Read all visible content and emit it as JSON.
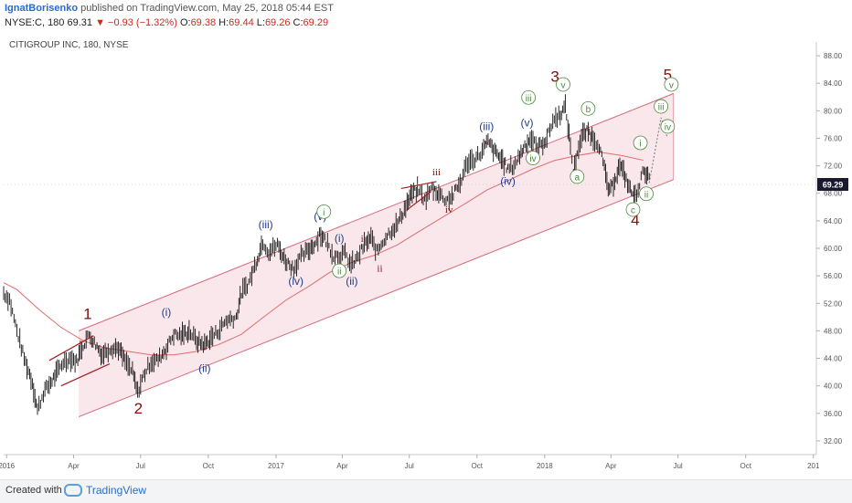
{
  "header": {
    "author": "IgnatBorisenko",
    "published_text": "published on TradingView.com, May 25, 2018 05:44 EST",
    "symbol_interval": "NYSE:C, 180",
    "last": "69.31",
    "change_arrow": "▼",
    "change": "−0.93 (−1.32%)",
    "o_label": "O:",
    "o_value": "69.38",
    "h_label": "H:",
    "h_value": "69.44",
    "l_label": "L:",
    "l_value": "69.26",
    "c_label": "C:",
    "c_value": "69.29"
  },
  "footer": {
    "created_with": "Created with",
    "brand": "TradingView",
    "logo_icon": "tradingview-logo-icon"
  },
  "colors": {
    "price": "#111111",
    "ma": "#e06c6c",
    "channel_fill": "#f7dfe4",
    "channel_line": "#d46a79",
    "red_label": "#7a1010",
    "blue_label": "#1f3c8c",
    "green_label": "#4a8a3a",
    "price_tag_bg": "#1a1a2e"
  },
  "chart_data": {
    "type": "line",
    "title": "CITIGROUP INC, 180, NYSE",
    "ylim": [
      30,
      90
    ],
    "yticks": [
      "88.00",
      "84.00",
      "80.00",
      "76.00",
      "72.00",
      "68.00",
      "64.00",
      "60.00",
      "56.00",
      "52.00",
      "48.00",
      "44.00",
      "40.00",
      "36.00",
      "32.00"
    ],
    "ytick_values": [
      88,
      84,
      80,
      76,
      72,
      68,
      64,
      60,
      56,
      52,
      48,
      44,
      40,
      36,
      32
    ],
    "xlim": [
      "2015-12-28",
      "2019-01-05"
    ],
    "xticks": [
      {
        "label": "2016",
        "date": "2016-01-01"
      },
      {
        "label": "Apr",
        "date": "2016-04-01"
      },
      {
        "label": "Jul",
        "date": "2016-07-01"
      },
      {
        "label": "Oct",
        "date": "2016-10-01"
      },
      {
        "label": "2017",
        "date": "2017-01-01"
      },
      {
        "label": "Apr",
        "date": "2017-04-01"
      },
      {
        "label": "Jul",
        "date": "2017-07-01"
      },
      {
        "label": "Oct",
        "date": "2017-10-01"
      },
      {
        "label": "2018",
        "date": "2018-01-01"
      },
      {
        "label": "Apr",
        "date": "2018-04-01"
      },
      {
        "label": "Jul",
        "date": "2018-07-01"
      },
      {
        "label": "Oct",
        "date": "2018-10-01"
      },
      {
        "label": "201",
        "date": "2019-01-01"
      }
    ],
    "current_price_label": "69.29",
    "current_price": 69.29,
    "series": [
      {
        "points": [
          [
            "2015-12-28",
            53.5
          ],
          [
            "2016-01-05",
            52.5
          ],
          [
            "2016-01-15",
            48
          ],
          [
            "2016-01-25",
            44
          ],
          [
            "2016-02-05",
            40.5
          ],
          [
            "2016-02-12",
            36.5
          ],
          [
            "2016-02-20",
            39
          ],
          [
            "2016-03-01",
            40.5
          ],
          [
            "2016-03-10",
            42
          ],
          [
            "2016-03-18",
            43.5
          ],
          [
            "2016-03-28",
            44
          ],
          [
            "2016-04-05",
            43.5
          ],
          [
            "2016-04-12",
            45.5
          ],
          [
            "2016-04-22",
            47.5
          ],
          [
            "2016-05-01",
            46
          ],
          [
            "2016-05-10",
            44.5
          ],
          [
            "2016-05-20",
            45.5
          ],
          [
            "2016-06-01",
            45.5
          ],
          [
            "2016-06-10",
            43.5
          ],
          [
            "2016-06-20",
            42
          ],
          [
            "2016-06-27",
            39
          ],
          [
            "2016-07-05",
            41.5
          ],
          [
            "2016-07-15",
            43.5
          ],
          [
            "2016-07-25",
            43.8
          ],
          [
            "2016-08-05",
            45.5
          ],
          [
            "2016-08-15",
            47.5
          ],
          [
            "2016-08-25",
            47.3
          ],
          [
            "2016-09-05",
            48
          ],
          [
            "2016-09-15",
            46.5
          ],
          [
            "2016-09-26",
            46
          ],
          [
            "2016-10-05",
            47
          ],
          [
            "2016-10-15",
            48
          ],
          [
            "2016-10-25",
            49.5
          ],
          [
            "2016-11-08",
            50
          ],
          [
            "2016-11-15",
            53.5
          ],
          [
            "2016-11-25",
            55
          ],
          [
            "2016-12-05",
            58
          ],
          [
            "2016-12-14",
            61
          ],
          [
            "2016-12-22",
            59.5
          ],
          [
            "2017-01-03",
            60.5
          ],
          [
            "2017-01-12",
            58.5
          ],
          [
            "2017-01-25",
            57
          ],
          [
            "2017-02-02",
            58.5
          ],
          [
            "2017-02-12",
            59.5
          ],
          [
            "2017-02-25",
            61
          ],
          [
            "2017-03-01",
            62.2
          ],
          [
            "2017-03-10",
            61
          ],
          [
            "2017-03-20",
            59
          ],
          [
            "2017-03-28",
            59
          ],
          [
            "2017-04-05",
            59.2
          ],
          [
            "2017-04-13",
            57.5
          ],
          [
            "2017-04-21",
            58.5
          ],
          [
            "2017-05-01",
            60.5
          ],
          [
            "2017-05-10",
            61.5
          ],
          [
            "2017-05-18",
            59.5
          ],
          [
            "2017-05-26",
            61
          ],
          [
            "2017-06-05",
            62.5
          ],
          [
            "2017-06-15",
            63.5
          ],
          [
            "2017-06-28",
            66.5
          ],
          [
            "2017-07-05",
            68
          ],
          [
            "2017-07-14",
            68.5
          ],
          [
            "2017-07-22",
            67
          ],
          [
            "2017-08-01",
            68.8
          ],
          [
            "2017-08-10",
            68
          ],
          [
            "2017-08-20",
            67
          ],
          [
            "2017-08-28",
            67.5
          ],
          [
            "2017-09-08",
            69.5
          ],
          [
            "2017-09-18",
            72.5
          ],
          [
            "2017-09-28",
            73
          ],
          [
            "2017-10-08",
            74
          ],
          [
            "2017-10-16",
            75.5
          ],
          [
            "2017-10-25",
            74
          ],
          [
            "2017-11-03",
            73
          ],
          [
            "2017-11-12",
            71.5
          ],
          [
            "2017-11-20",
            72
          ],
          [
            "2017-11-28",
            73.5
          ],
          [
            "2017-12-05",
            75
          ],
          [
            "2017-12-14",
            76
          ],
          [
            "2017-12-22",
            74.5
          ],
          [
            "2018-01-04",
            76
          ],
          [
            "2018-01-12",
            78.5
          ],
          [
            "2018-01-22",
            79.5
          ],
          [
            "2018-01-29",
            80.5
          ],
          [
            "2018-02-05",
            75
          ],
          [
            "2018-02-09",
            71
          ],
          [
            "2018-02-14",
            74
          ],
          [
            "2018-02-22",
            76.5
          ],
          [
            "2018-03-01",
            77
          ],
          [
            "2018-03-08",
            76
          ],
          [
            "2018-03-16",
            75
          ],
          [
            "2018-03-23",
            71.5
          ],
          [
            "2018-03-30",
            68
          ],
          [
            "2018-04-06",
            70
          ],
          [
            "2018-04-13",
            72
          ],
          [
            "2018-04-20",
            70.5
          ],
          [
            "2018-04-27",
            68.5
          ],
          [
            "2018-05-04",
            67.5
          ],
          [
            "2018-05-10",
            69.5
          ],
          [
            "2018-05-16",
            71.5
          ],
          [
            "2018-05-21",
            70.5
          ],
          [
            "2018-05-25",
            69.3
          ]
        ]
      },
      {
        "points": [
          [
            "2015-12-28",
            55
          ],
          [
            "2016-01-15",
            54
          ],
          [
            "2016-02-15",
            51
          ],
          [
            "2016-03-15",
            48.5
          ],
          [
            "2016-04-15",
            46.5
          ],
          [
            "2016-05-15",
            45.5
          ],
          [
            "2016-06-15",
            45
          ],
          [
            "2016-07-15",
            44.5
          ],
          [
            "2016-08-15",
            44.5
          ],
          [
            "2016-09-15",
            45
          ],
          [
            "2016-10-15",
            46
          ],
          [
            "2016-11-15",
            47.5
          ],
          [
            "2016-12-15",
            50
          ],
          [
            "2017-01-15",
            52.5
          ],
          [
            "2017-02-15",
            54.5
          ],
          [
            "2017-03-15",
            56.5
          ],
          [
            "2017-04-15",
            58
          ],
          [
            "2017-05-15",
            59
          ],
          [
            "2017-06-15",
            60.5
          ],
          [
            "2017-07-15",
            62.5
          ],
          [
            "2017-08-15",
            64.5
          ],
          [
            "2017-09-15",
            66.5
          ],
          [
            "2017-10-15",
            68.5
          ],
          [
            "2017-11-15",
            70
          ],
          [
            "2017-12-15",
            71.5
          ],
          [
            "2018-01-15",
            72.8
          ],
          [
            "2018-02-15",
            73.5
          ],
          [
            "2018-03-15",
            74
          ],
          [
            "2018-04-15",
            73.5
          ],
          [
            "2018-05-15",
            72.8
          ]
        ]
      }
    ],
    "channel": {
      "upper": [
        [
          "2016-04-08",
          48
        ],
        [
          "2018-06-25",
          82.5
        ]
      ],
      "lower": [
        [
          "2016-04-08",
          35.5
        ],
        [
          "2018-06-25",
          70
        ]
      ]
    },
    "annotations": [
      {
        "text": "1",
        "date": "2016-04-20",
        "price": 49.7,
        "style": "red-big"
      },
      {
        "text": "2",
        "date": "2016-06-28",
        "price": 36.0,
        "style": "red-big"
      },
      {
        "text": "3",
        "date": "2018-01-15",
        "price": 84.2,
        "style": "red-big"
      },
      {
        "text": "4",
        "date": "2018-05-04",
        "price": 63.4,
        "style": "red-big"
      },
      {
        "text": "5",
        "date": "2018-06-17",
        "price": 84.5,
        "style": "red-big"
      },
      {
        "text": "(i)",
        "date": "2016-08-05",
        "price": 50.2,
        "style": "blue"
      },
      {
        "text": "(ii)",
        "date": "2016-09-26",
        "price": 42.0,
        "style": "blue"
      },
      {
        "text": "(iii)",
        "date": "2016-12-18",
        "price": 62.9,
        "style": "blue"
      },
      {
        "text": "(iv)",
        "date": "2017-01-28",
        "price": 54.7,
        "style": "blue"
      },
      {
        "text": "(v)",
        "date": "2017-03-02",
        "price": 64.1,
        "style": "blue"
      },
      {
        "text": "(i)",
        "date": "2017-03-28",
        "price": 60.9,
        "style": "blue"
      },
      {
        "text": "(ii)",
        "date": "2017-04-14",
        "price": 54.7,
        "style": "blue"
      },
      {
        "text": "(iii)",
        "date": "2017-10-14",
        "price": 77.2,
        "style": "blue"
      },
      {
        "text": "(v)",
        "date": "2017-12-08",
        "price": 77.7,
        "style": "blue"
      },
      {
        "text": "(iv)",
        "date": "2017-11-12",
        "price": 69.2,
        "style": "blue"
      },
      {
        "text": "i",
        "date": "2017-04-28",
        "price": 60.9,
        "style": "red"
      },
      {
        "text": "ii",
        "date": "2017-05-22",
        "price": 56.6,
        "style": "red"
      },
      {
        "text": "iii",
        "date": "2017-08-07",
        "price": 70.6,
        "style": "red"
      },
      {
        "text": "iv",
        "date": "2017-08-24",
        "price": 65.2,
        "style": "red"
      },
      {
        "text": "v",
        "date": "2017-10-14",
        "price": 75.0,
        "style": "red"
      },
      {
        "text": "i",
        "date": "2017-03-07",
        "price": 64.8,
        "style": "green"
      },
      {
        "text": "ii",
        "date": "2017-03-28",
        "price": 56.2,
        "style": "green"
      },
      {
        "text": "iii",
        "date": "2017-12-10",
        "price": 81.4,
        "style": "green"
      },
      {
        "text": "iv",
        "date": "2017-12-16",
        "price": 72.6,
        "style": "green"
      },
      {
        "text": "v",
        "date": "2018-01-26",
        "price": 83.3,
        "style": "green"
      },
      {
        "text": "a",
        "date": "2018-02-14",
        "price": 69.9,
        "style": "green"
      },
      {
        "text": "b",
        "date": "2018-03-01",
        "price": 79.8,
        "style": "green"
      },
      {
        "text": "c",
        "date": "2018-05-01",
        "price": 65.1,
        "style": "green"
      },
      {
        "text": "i",
        "date": "2018-05-11",
        "price": 74.8,
        "style": "green"
      },
      {
        "text": "ii",
        "date": "2018-05-19",
        "price": 67.4,
        "style": "green"
      },
      {
        "text": "iii",
        "date": "2018-06-08",
        "price": 80.1,
        "style": "green"
      },
      {
        "text": "iv",
        "date": "2018-06-17",
        "price": 77.2,
        "style": "green"
      },
      {
        "text": "v",
        "date": "2018-06-22",
        "price": 83.3,
        "style": "green"
      }
    ]
  }
}
